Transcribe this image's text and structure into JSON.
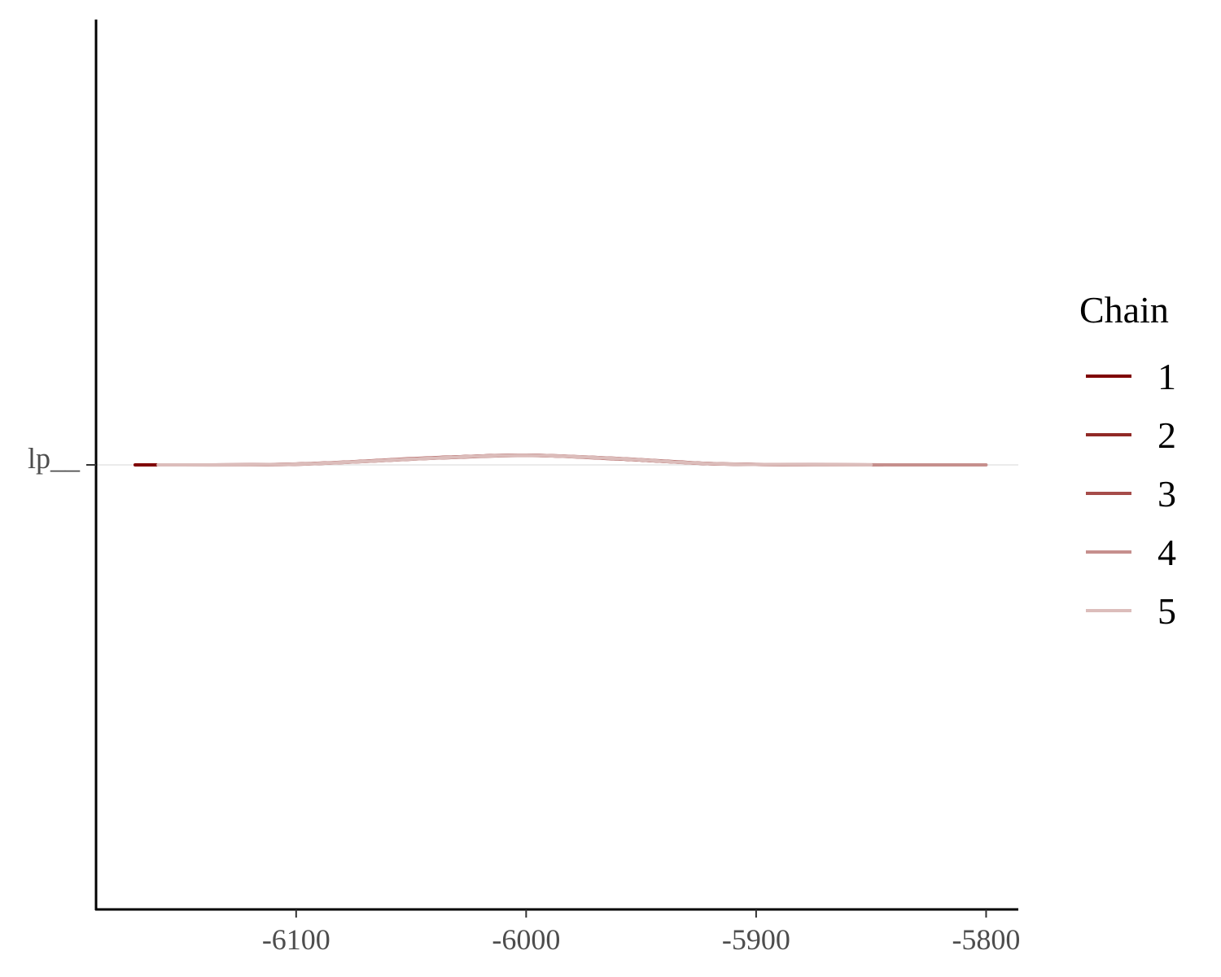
{
  "chart_data": {
    "type": "area",
    "x_ticks": [
      -6100,
      -6000,
      -5900,
      -5800
    ],
    "x_tick_labels": [
      "-6100",
      "-6000",
      "-5900",
      "-5800"
    ],
    "xlim": [
      -6187,
      -5786
    ],
    "y_categories": [
      "lp__"
    ],
    "legend": {
      "title": "Chain",
      "position": "right"
    },
    "series": [
      {
        "name": "1",
        "color": "#7f0000",
        "x": [
          -6170,
          -6100,
          -6040,
          -6000,
          -5960,
          -5920,
          -5880,
          -5860
        ],
        "density": [
          0.0,
          0.08,
          0.72,
          1.0,
          0.62,
          0.12,
          0.01,
          0.0
        ]
      },
      {
        "name": "2",
        "color": "#912a27",
        "x": [
          -6160,
          -6100,
          -6040,
          -6000,
          -5960,
          -5920,
          -5880,
          -5845
        ],
        "density": [
          0.0,
          0.07,
          0.68,
          0.96,
          0.66,
          0.14,
          0.02,
          0.0
        ]
      },
      {
        "name": "3",
        "color": "#a64c4a",
        "x": [
          -6160,
          -6100,
          -6040,
          -6000,
          -5960,
          -5920,
          -5880,
          -5850
        ],
        "density": [
          0.0,
          0.09,
          0.74,
          0.98,
          0.6,
          0.13,
          0.02,
          0.0
        ]
      },
      {
        "name": "4",
        "color": "#c68f8d",
        "x": [
          -6160,
          -6100,
          -6040,
          -6000,
          -5960,
          -5920,
          -5870,
          -5800
        ],
        "density": [
          0.0,
          0.06,
          0.7,
          1.0,
          0.64,
          0.12,
          0.02,
          0.0
        ]
      },
      {
        "name": "5",
        "color": "#dcbdbb",
        "x": [
          -6160,
          -6100,
          -6040,
          -6000,
          -5960,
          -5920,
          -5880,
          -5850
        ],
        "density": [
          0.0,
          0.08,
          0.7,
          0.97,
          0.63,
          0.13,
          0.02,
          0.0
        ]
      }
    ]
  }
}
